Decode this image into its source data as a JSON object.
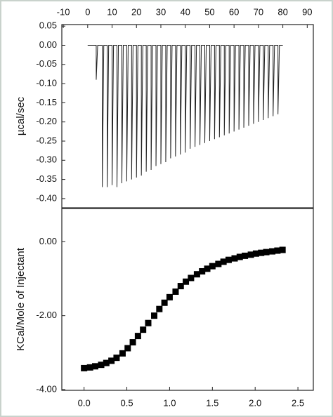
{
  "chart_data": [
    {
      "type": "line",
      "ylabel": "µcal/sec",
      "xaxis_position": "top",
      "color": "#222222",
      "xlim": [
        -10.6,
        92.5
      ],
      "xticks": [
        -10,
        0,
        10,
        20,
        30,
        40,
        50,
        60,
        70,
        80,
        90
      ],
      "ylim": [
        -0.424,
        0.054
      ],
      "yticks": [
        0.05,
        {
          "value": 0,
          "label": "0.00"
        },
        -0.05,
        {
          "value": -0.1,
          "label": "-0.10"
        },
        -0.15,
        {
          "value": -0.2,
          "label": "-0.20"
        },
        -0.25,
        {
          "value": -0.3,
          "label": "-0.30"
        },
        -0.35,
        {
          "value": -0.4,
          "label": "-0.40"
        }
      ],
      "x": [
        0,
        3.5,
        3.5,
        4.1,
        6,
        6,
        6.6,
        8,
        8,
        8.6,
        10,
        10,
        10.6,
        12,
        12,
        12.6,
        14,
        14,
        14.6,
        16,
        16,
        16.6,
        18,
        18,
        18.6,
        20,
        20,
        20.6,
        22,
        22,
        22.6,
        24,
        24,
        24.6,
        26,
        26,
        26.6,
        28,
        28,
        28.6,
        30,
        30,
        30.6,
        32,
        32,
        32.6,
        34,
        34,
        34.6,
        36,
        36,
        36.6,
        38,
        38,
        38.6,
        40,
        40,
        40.6,
        42,
        42,
        42.6,
        44,
        44,
        44.6,
        46,
        46,
        46.6,
        48,
        48,
        48.6,
        50,
        50,
        50.6,
        52,
        52,
        52.6,
        54,
        54,
        54.6,
        56,
        56,
        56.6,
        58,
        58,
        58.6,
        60,
        60,
        60.6,
        62,
        62,
        62.6,
        64,
        64,
        64.6,
        66,
        66,
        66.6,
        68,
        68,
        68.6,
        70,
        70,
        70.6,
        72,
        72,
        72.6,
        74,
        74,
        74.6,
        76,
        76,
        76.6,
        78,
        78,
        78.6,
        80
      ],
      "values": [
        0,
        0,
        -0.09,
        0,
        0,
        -0.37,
        0,
        0,
        -0.37,
        0,
        0,
        -0.365,
        0,
        0,
        -0.37,
        0,
        0,
        -0.36,
        0,
        0,
        -0.355,
        0,
        0,
        -0.35,
        0,
        0,
        -0.345,
        0,
        0,
        -0.34,
        0,
        0,
        -0.33,
        0,
        0,
        -0.325,
        0,
        0,
        -0.315,
        0,
        0,
        -0.31,
        0,
        0,
        -0.305,
        0,
        0,
        -0.295,
        0,
        0,
        -0.29,
        0,
        0,
        -0.285,
        0,
        0,
        -0.28,
        0,
        0,
        -0.27,
        0,
        0,
        -0.265,
        0,
        0,
        -0.26,
        0,
        0,
        -0.255,
        0,
        0,
        -0.25,
        0,
        0,
        -0.245,
        0,
        0,
        -0.24,
        0,
        0,
        -0.235,
        0,
        0,
        -0.23,
        0,
        0,
        -0.225,
        0,
        0,
        -0.22,
        0,
        0,
        -0.215,
        0,
        0,
        -0.21,
        0,
        0,
        -0.205,
        0,
        0,
        -0.2,
        0,
        0,
        -0.195,
        0,
        0,
        -0.19,
        0,
        0,
        -0.185,
        0,
        0,
        -0.18,
        0,
        0
      ]
    },
    {
      "type": "scatter",
      "ylabel": "KCal/Mole of Injectant",
      "xaxis_position": "bottom",
      "color": "#000000",
      "marker": "square",
      "xlim": [
        -0.26,
        2.68
      ],
      "xticks": [
        {
          "value": 0,
          "label": "0.0"
        },
        0.5,
        {
          "value": 1,
          "label": "1.0"
        },
        1.5,
        {
          "value": 2,
          "label": "2.0"
        },
        2.5
      ],
      "ylim": [
        -4.02,
        0.9
      ],
      "yticks": [
        {
          "value": 0,
          "label": "0.00"
        },
        {
          "value": -2,
          "label": "-2.00"
        },
        {
          "value": -4,
          "label": "-4.00"
        }
      ],
      "x": [
        0.0,
        0.07,
        0.13,
        0.2,
        0.26,
        0.32,
        0.38,
        0.45,
        0.51,
        0.57,
        0.63,
        0.69,
        0.75,
        0.82,
        0.88,
        0.94,
        1.0,
        1.07,
        1.13,
        1.19,
        1.25,
        1.32,
        1.38,
        1.44,
        1.5,
        1.57,
        1.63,
        1.69,
        1.76,
        1.82,
        1.88,
        1.95,
        2.01,
        2.07,
        2.13,
        2.2,
        2.26,
        2.32
      ],
      "values": [
        -3.42,
        -3.4,
        -3.37,
        -3.33,
        -3.28,
        -3.22,
        -3.14,
        -3.02,
        -2.88,
        -2.72,
        -2.55,
        -2.38,
        -2.2,
        -2.0,
        -1.82,
        -1.65,
        -1.5,
        -1.35,
        -1.2,
        -1.08,
        -0.98,
        -0.88,
        -0.8,
        -0.73,
        -0.66,
        -0.6,
        -0.54,
        -0.49,
        -0.45,
        -0.41,
        -0.38,
        -0.35,
        -0.32,
        -0.3,
        -0.28,
        -0.26,
        -0.24,
        -0.22
      ]
    }
  ]
}
